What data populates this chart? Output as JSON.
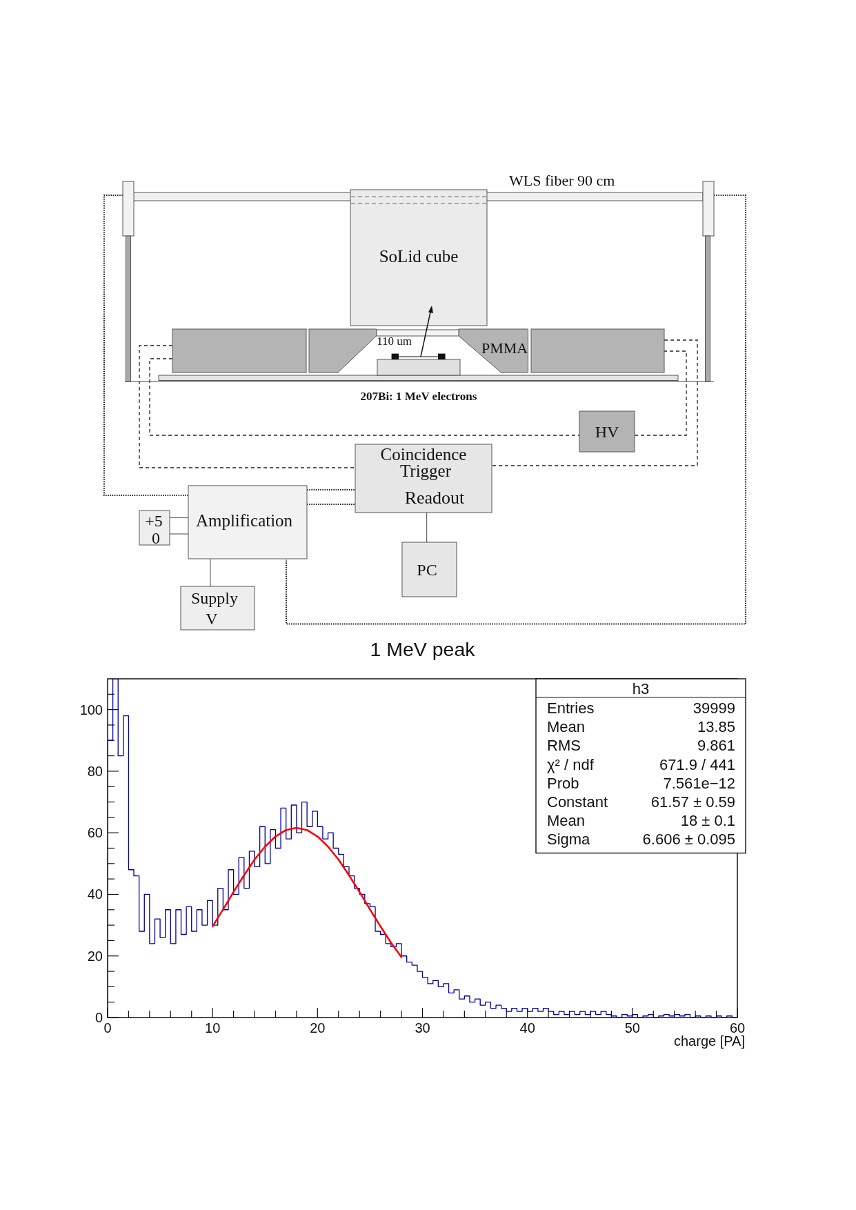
{
  "chart_data": [
    {
      "type": "other",
      "annotations": [
        "WLS fiber 90 cm",
        "SoLid cube",
        "110 um",
        "PMMA",
        "207Bi: 1 MeV electrons",
        "HV",
        "Coincidence",
        "Trigger",
        "Readout",
        "+5",
        "0",
        "Amplification",
        "PC",
        "Supply",
        "V"
      ]
    },
    {
      "type": "histogram",
      "title": "1 MeV peak",
      "xlabel": "charge [PA]",
      "color": "#000099",
      "bins": [
        0,
        0.5,
        1,
        1.5,
        2,
        2.5,
        3,
        3.5,
        4,
        4.5,
        5,
        5.5,
        6,
        6.5,
        7,
        7.5,
        8,
        8.5,
        9,
        9.5,
        10,
        10.5,
        11,
        11.5,
        12,
        12.5,
        13,
        13.5,
        14,
        14.5,
        15,
        15.5,
        16,
        16.5,
        17,
        17.5,
        18,
        18.5,
        19,
        19.5,
        20,
        20.5,
        21,
        21.5,
        22,
        22.5,
        23,
        23.5,
        24,
        24.5,
        25,
        25.5,
        26,
        26.5,
        27,
        27.5,
        28,
        28.5,
        29,
        29.5,
        30,
        30.5,
        31,
        31.5,
        32,
        32.5,
        33,
        33.5,
        34,
        34.5,
        35,
        35.5,
        36,
        36.5,
        37,
        37.5,
        38,
        38.5,
        39,
        39.5,
        40,
        40.5,
        41,
        41.5,
        42,
        42.5,
        43,
        43.5,
        44,
        44.5,
        45,
        45.5,
        46,
        46.5,
        47,
        47.5,
        48,
        48.5,
        49,
        49.5,
        50,
        50.5,
        51,
        51.5,
        52,
        52.5,
        53,
        53.5,
        54,
        54.5,
        55,
        55.5,
        56,
        56.5,
        57,
        57.5,
        58,
        58.5,
        59,
        59.5,
        60
      ],
      "values": [
        90,
        110,
        85,
        98,
        48,
        46,
        28,
        40,
        24,
        32,
        26,
        35,
        24,
        35,
        27,
        36,
        28,
        35,
        30,
        38,
        30,
        42,
        35,
        48,
        40,
        52,
        42,
        54,
        49,
        62,
        50,
        61,
        55,
        68,
        58,
        69,
        60,
        70,
        62,
        67,
        62,
        58,
        60,
        55,
        53,
        49,
        46,
        42,
        40,
        37,
        36,
        28,
        27,
        24,
        23,
        24,
        20,
        18,
        17,
        15,
        13,
        11,
        12,
        10,
        11,
        8,
        9,
        6,
        7,
        5,
        6,
        4,
        5,
        3,
        4,
        3,
        2,
        3,
        2,
        3,
        2,
        3,
        2,
        3,
        2,
        1,
        2,
        1,
        2,
        1,
        2,
        1,
        2,
        1,
        2,
        1,
        0.5,
        0,
        1,
        0.5,
        1,
        0,
        0.5,
        1,
        0,
        0.5,
        1,
        0.5,
        1,
        0.5,
        1,
        0,
        0.5,
        0,
        0.5,
        0,
        0.5,
        0,
        0.5,
        0
      ],
      "series": [
        {
          "type": "line",
          "color": "#ff0000",
          "x": [
            10,
            11,
            12,
            13,
            14,
            15,
            16,
            17,
            18,
            19,
            20,
            21,
            22,
            23,
            24,
            25,
            26,
            27,
            28
          ],
          "values": [
            29.6,
            35.1,
            40.8,
            46.2,
            51.3,
            55.5,
            58.8,
            60.9,
            61.6,
            60.9,
            58.8,
            55.5,
            51.3,
            46.2,
            40.8,
            35.1,
            29.6,
            24.3,
            19.6
          ]
        }
      ],
      "xlim": [
        0,
        60
      ],
      "xticks": [
        0,
        {
          "value": 2,
          "label": null
        },
        {
          "value": 4,
          "label": null
        },
        {
          "value": 6,
          "label": null
        },
        {
          "value": 8,
          "label": null
        },
        10,
        {
          "value": 12,
          "label": null
        },
        {
          "value": 14,
          "label": null
        },
        {
          "value": 16,
          "label": null
        },
        {
          "value": 18,
          "label": null
        },
        20,
        {
          "value": 22,
          "label": null
        },
        {
          "value": 24,
          "label": null
        },
        {
          "value": 26,
          "label": null
        },
        {
          "value": 28,
          "label": null
        },
        30,
        {
          "value": 32,
          "label": null
        },
        {
          "value": 34,
          "label": null
        },
        {
          "value": 36,
          "label": null
        },
        {
          "value": 38,
          "label": null
        },
        40,
        {
          "value": 42,
          "label": null
        },
        {
          "value": 44,
          "label": null
        },
        {
          "value": 46,
          "label": null
        },
        {
          "value": 48,
          "label": null
        },
        50,
        {
          "value": 52,
          "label": null
        },
        {
          "value": 54,
          "label": null
        },
        {
          "value": 56,
          "label": null
        },
        {
          "value": 58,
          "label": null
        },
        60
      ],
      "ylim": [
        0,
        110
      ],
      "yticks": [
        0,
        {
          "value": 5,
          "label": null
        },
        {
          "value": 10,
          "label": null
        },
        {
          "value": 15,
          "label": null
        },
        20,
        {
          "value": 25,
          "label": null
        },
        {
          "value": 30,
          "label": null
        },
        {
          "value": 35,
          "label": null
        },
        40,
        {
          "value": 45,
          "label": null
        },
        {
          "value": 50,
          "label": null
        },
        {
          "value": 55,
          "label": null
        },
        60,
        {
          "value": 65,
          "label": null
        },
        {
          "value": 70,
          "label": null
        },
        {
          "value": 75,
          "label": null
        },
        80,
        {
          "value": 85,
          "label": null
        },
        {
          "value": 90,
          "label": null
        },
        {
          "value": 95,
          "label": null
        },
        100,
        {
          "value": 105,
          "label": null
        }
      ],
      "annotations": [
        "h3",
        "Entries",
        "39999",
        "Mean",
        "13.85",
        "RMS",
        "9.861",
        "χ² / ndf",
        "671.9 / 441",
        "Prob",
        "7.561e−12",
        "Constant",
        "61.57 ± 0.59",
        "Mean",
        "18 ± 0.1",
        "Sigma",
        "6.606 ± 0.095"
      ]
    }
  ]
}
